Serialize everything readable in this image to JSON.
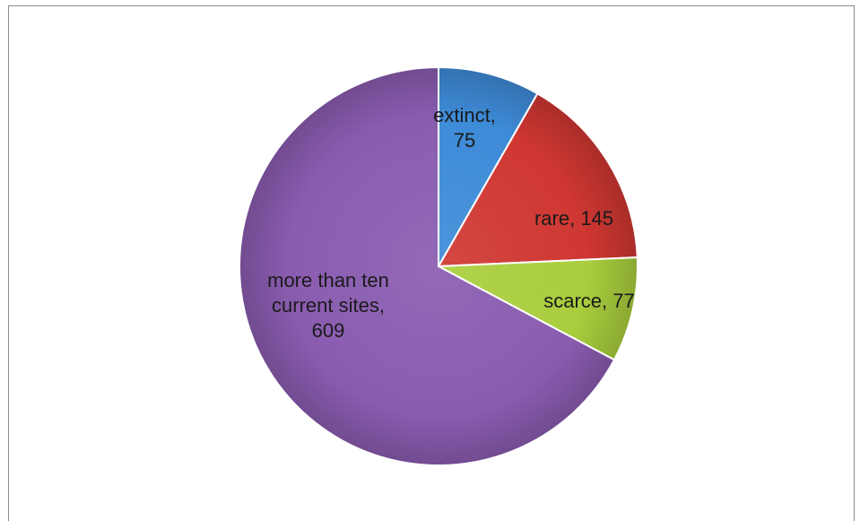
{
  "chart_data": {
    "type": "pie",
    "start_angle_deg": 0,
    "direction": "clockwise",
    "legend": "none",
    "slices": [
      {
        "label_lines": [
          "extinct,",
          "75"
        ],
        "name": "extinct",
        "value": 75,
        "color": "#3e8bd8"
      },
      {
        "label_lines": [
          "rare, 145"
        ],
        "name": "rare",
        "value": 145,
        "color": "#cf3732"
      },
      {
        "label_lines": [
          "scarce, 77"
        ],
        "name": "scarce",
        "value": 77,
        "color": "#a9ce3d"
      },
      {
        "label_lines": [
          "more than ten",
          "current sites,",
          "609"
        ],
        "name": "more than ten current sites",
        "value": 609,
        "color": "#8a5cb0"
      }
    ]
  }
}
